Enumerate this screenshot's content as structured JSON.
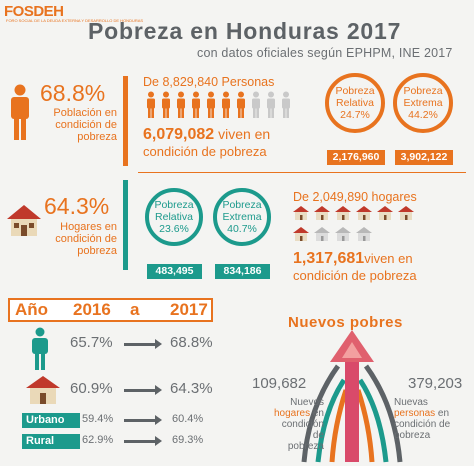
{
  "header": {
    "logo": "FOSDEH",
    "logo_sub": "FORO SOCIAL DE LA DEUDA EXTERNA Y DESARROLLO DE HONDURAS",
    "title": "Pobreza en Honduras 2017",
    "subtitle": "con datos oficiales según EPHPM, INE 2017"
  },
  "people": {
    "pct": "68.8%",
    "desc": [
      "Población en",
      "condición de",
      "pobreza"
    ],
    "total": "De 8,829,840 Personas",
    "count": "6,079,082",
    "count_suffix": " viven en",
    "count_line2": "condición de pobreza",
    "relativa": {
      "label1": "Pobreza",
      "label2": "Relativa",
      "pct": "24.7%",
      "value": "2,176,960"
    },
    "extrema": {
      "label1": "Pobreza",
      "label2": "Extrema",
      "pct": "44.2%",
      "value": "3,902,122"
    }
  },
  "households": {
    "pct": "64.3%",
    "desc": [
      "Hogares en",
      "condición de",
      "pobreza"
    ],
    "relativa": {
      "label1": "Pobreza",
      "label2": "Relativa",
      "pct": "23.6%",
      "value": "483,495"
    },
    "extrema": {
      "label1": "Pobreza",
      "label2": "Extrema",
      "pct": "40.7%",
      "value": "834,186"
    },
    "total": "De 2,049,890 hogares",
    "count": "1,317,681",
    "count_suffix": "viven en",
    "count_line2": "condición de pobreza"
  },
  "comparison": {
    "year_label": "Año",
    "from": "2016",
    "conj": "a",
    "to": "2017",
    "people": {
      "from": "65.7%",
      "to": "68.8%"
    },
    "homes": {
      "from": "60.9%",
      "to": "64.3%"
    },
    "urbano": {
      "label": "Urbano",
      "from": "59.4%",
      "to": "60.4%"
    },
    "rural": {
      "label": "Rural",
      "from": "62.9%",
      "to": "69.3%"
    }
  },
  "new_poor": {
    "title": "Nuevos pobres",
    "homes_value": "109,682",
    "homes_text": [
      "Nuevos",
      "hogares",
      "en",
      "condición de",
      "pobreza"
    ],
    "people_value": "379,203",
    "people_text": [
      "Nuevas",
      "personas",
      "en",
      "condición de",
      "pobreza"
    ]
  },
  "colors": {
    "orange": "#e8731f",
    "teal": "#1c9a8c",
    "gray": "#5d6266"
  }
}
